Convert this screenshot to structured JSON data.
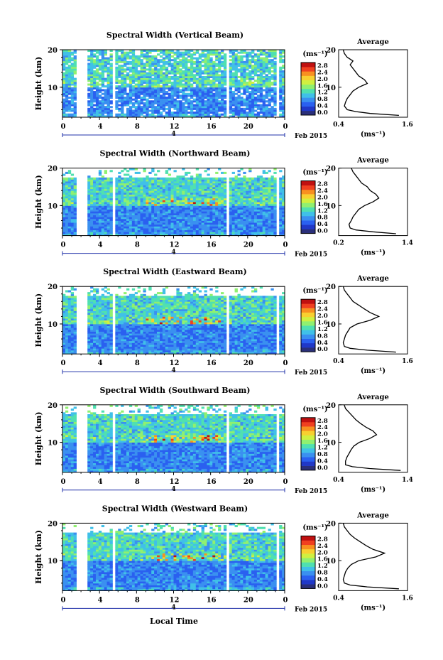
{
  "figure": {
    "xlabel": "Local Time",
    "date_label": "Feb 2015",
    "day_label": "4",
    "colorbar_unit": "(ms⁻¹)",
    "avg_title": "Average",
    "avg_unit": "(ms⁻¹)",
    "colorbar_colors": [
      "#2a2f7a",
      "#2038c8",
      "#2a60f0",
      "#3a90f0",
      "#40c0e8",
      "#50e0b0",
      "#90f070",
      "#d0f040",
      "#f8d030",
      "#f89020",
      "#f04020",
      "#c01010"
    ]
  },
  "chart_data": [
    {
      "type": "heatmap",
      "title": "Spectral Width (Vertical Beam)",
      "ylabel": "Height (km)",
      "xticks": [
        "0",
        "4",
        "8",
        "12",
        "16",
        "20",
        "0"
      ],
      "xlim": [
        0,
        24
      ],
      "yticks": [
        "10",
        "20"
      ],
      "ylim": [
        2,
        20
      ],
      "colorbar_ticks": [
        "2.8",
        "2.4",
        "2.0",
        "1.6",
        "1.2",
        "0.8",
        "0.4",
        "0.0"
      ],
      "colorbar_range": [
        0,
        2.8
      ],
      "data_gaps_hours": [
        [
          1.5,
          2.6
        ],
        [
          5.3,
          5.8
        ],
        [
          17.6,
          18.1
        ],
        [
          23.1,
          23.5
        ]
      ],
      "average_profile": {
        "xticks": [
          "0.4",
          "1.6"
        ],
        "xlim": [
          0.4,
          1.6
        ],
        "yticks": [
          "10",
          "20"
        ],
        "ylim": [
          2,
          20
        ],
        "height_km": [
          2.5,
          3,
          3.5,
          4,
          5,
          6,
          7,
          8,
          9,
          10,
          11,
          12,
          13,
          14,
          15,
          16,
          17,
          18,
          19,
          20
        ],
        "width_ms": [
          1.45,
          0.95,
          0.7,
          0.55,
          0.5,
          0.52,
          0.55,
          0.6,
          0.65,
          0.75,
          0.9,
          0.85,
          0.75,
          0.7,
          0.65,
          0.6,
          0.65,
          0.55,
          0.5,
          0.48
        ]
      }
    },
    {
      "type": "heatmap",
      "title": "Spectral Width (Northward Beam)",
      "ylabel": "Height (km)",
      "xticks": [
        "0",
        "4",
        "8",
        "12",
        "16",
        "20",
        "0"
      ],
      "xlim": [
        0,
        24
      ],
      "yticks": [
        "10",
        "20"
      ],
      "ylim": [
        2,
        20
      ],
      "colorbar_ticks": [
        "2.8",
        "2.4",
        "2.0",
        "1.6",
        "1.2",
        "0.8",
        "0.4",
        "0.0"
      ],
      "colorbar_range": [
        0,
        2.8
      ],
      "data_gaps_hours": [
        [
          1.5,
          2.6
        ],
        [
          5.3,
          5.8
        ],
        [
          17.6,
          18.1
        ],
        [
          23.1,
          23.5
        ]
      ],
      "average_profile": {
        "xticks": [
          "0.2",
          "1.4"
        ],
        "xlim": [
          0.2,
          1.4
        ],
        "yticks": [
          "10",
          "20"
        ],
        "ylim": [
          2,
          20
        ],
        "height_km": [
          2.5,
          3,
          3.5,
          4,
          5,
          6,
          7,
          8,
          9,
          10,
          11,
          12,
          13,
          14,
          15,
          16,
          17,
          18,
          19,
          20
        ],
        "width_ms": [
          1.2,
          0.8,
          0.5,
          0.4,
          0.38,
          0.42,
          0.45,
          0.5,
          0.55,
          0.65,
          0.8,
          0.9,
          0.85,
          0.75,
          0.7,
          0.6,
          0.55,
          0.5,
          0.45,
          0.42
        ]
      }
    },
    {
      "type": "heatmap",
      "title": "Spectral Width (Eastward Beam)",
      "ylabel": "Height (km)",
      "xticks": [
        "0",
        "4",
        "8",
        "12",
        "16",
        "20",
        "0"
      ],
      "xlim": [
        0,
        24
      ],
      "yticks": [
        "10",
        "20"
      ],
      "ylim": [
        2,
        20
      ],
      "colorbar_ticks": [
        "2.8",
        "2.4",
        "2.0",
        "1.6",
        "1.2",
        "0.8",
        "0.4",
        "0.0"
      ],
      "colorbar_range": [
        0,
        2.8
      ],
      "data_gaps_hours": [
        [
          1.5,
          2.6
        ],
        [
          5.3,
          5.8
        ],
        [
          17.6,
          18.1
        ],
        [
          23.1,
          23.5
        ]
      ],
      "average_profile": {
        "xticks": [
          "0.4",
          "1.6"
        ],
        "xlim": [
          0.4,
          1.6
        ],
        "yticks": [
          "10",
          "20"
        ],
        "ylim": [
          2,
          20
        ],
        "height_km": [
          2.5,
          3,
          3.5,
          4,
          5,
          6,
          7,
          8,
          9,
          10,
          11,
          12,
          13,
          14,
          15,
          16,
          17,
          18,
          19,
          20
        ],
        "width_ms": [
          1.4,
          0.9,
          0.6,
          0.5,
          0.48,
          0.5,
          0.52,
          0.56,
          0.6,
          0.72,
          0.95,
          1.1,
          0.95,
          0.85,
          0.75,
          0.65,
          0.6,
          0.55,
          0.5,
          0.48
        ]
      }
    },
    {
      "type": "heatmap",
      "title": "Spectral Width (Southward Beam)",
      "ylabel": "Height (km)",
      "xticks": [
        "0",
        "4",
        "8",
        "12",
        "16",
        "20",
        "0"
      ],
      "xlim": [
        0,
        24
      ],
      "yticks": [
        "10",
        "20"
      ],
      "ylim": [
        2,
        20
      ],
      "colorbar_ticks": [
        "2.8",
        "2.4",
        "2.0",
        "1.6",
        "1.2",
        "0.8",
        "0.4",
        "0.0"
      ],
      "colorbar_range": [
        0,
        2.8
      ],
      "data_gaps_hours": [
        [
          1.5,
          2.6
        ],
        [
          5.3,
          5.8
        ],
        [
          17.6,
          18.1
        ],
        [
          23.1,
          23.5
        ]
      ],
      "average_profile": {
        "xticks": [
          "0.4",
          "1.4"
        ],
        "xlim": [
          0.4,
          1.4
        ],
        "yticks": [
          "10",
          "20"
        ],
        "ylim": [
          2,
          20
        ],
        "height_km": [
          2.5,
          3,
          3.5,
          4,
          5,
          6,
          7,
          8,
          9,
          10,
          11,
          12,
          13,
          14,
          15,
          16,
          17,
          18,
          19,
          20
        ],
        "width_ms": [
          1.3,
          0.85,
          0.6,
          0.5,
          0.5,
          0.52,
          0.55,
          0.58,
          0.62,
          0.7,
          0.85,
          0.95,
          0.9,
          0.8,
          0.72,
          0.65,
          0.6,
          0.55,
          0.5,
          0.48
        ]
      }
    },
    {
      "type": "heatmap",
      "title": "Spectral Width (Westward Beam)",
      "ylabel": "Height (km)",
      "xticks": [
        "0",
        "4",
        "8",
        "12",
        "16",
        "20",
        "0"
      ],
      "xlim": [
        0,
        24
      ],
      "yticks": [
        "10",
        "20"
      ],
      "ylim": [
        2,
        20
      ],
      "colorbar_ticks": [
        "2.8",
        "2.4",
        "2.0",
        "1.6",
        "1.2",
        "0.8",
        "0.4",
        "0.0"
      ],
      "colorbar_range": [
        0,
        2.8
      ],
      "data_gaps_hours": [
        [
          1.5,
          2.6
        ],
        [
          5.3,
          5.8
        ],
        [
          17.6,
          18.1
        ],
        [
          23.1,
          23.5
        ]
      ],
      "average_profile": {
        "xticks": [
          "0.4",
          "1.6"
        ],
        "xlim": [
          0.4,
          1.6
        ],
        "yticks": [
          "10",
          "20"
        ],
        "ylim": [
          2,
          20
        ],
        "height_km": [
          2.5,
          3,
          3.5,
          4,
          5,
          6,
          7,
          8,
          9,
          10,
          11,
          12,
          13,
          14,
          15,
          16,
          17,
          18,
          19,
          20
        ],
        "width_ms": [
          1.45,
          0.9,
          0.6,
          0.5,
          0.48,
          0.5,
          0.52,
          0.56,
          0.62,
          0.75,
          1.05,
          1.2,
          1.0,
          0.88,
          0.78,
          0.68,
          0.6,
          0.55,
          0.5,
          0.48
        ]
      }
    }
  ]
}
